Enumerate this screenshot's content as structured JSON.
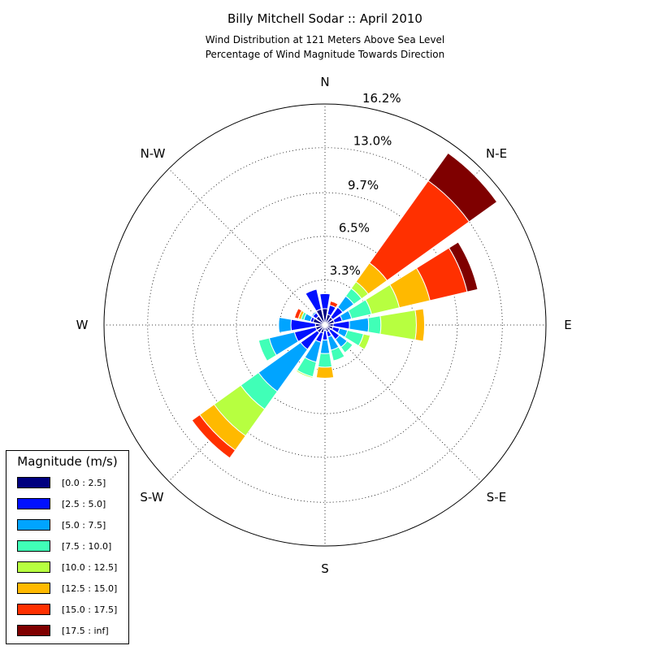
{
  "chart_data": {
    "type": "windrose",
    "title": "Billy Mitchell Sodar :: April 2010",
    "subtitle_lines": [
      "Wind Distribution at 121 Meters Above Sea Level",
      "Percentage of Wind Magnitude Towards Direction"
    ],
    "direction_labels": [
      "N",
      "N-E",
      "E",
      "S-E",
      "S",
      "S-W",
      "W",
      "N-W"
    ],
    "radial_ticks": [
      3.3,
      6.5,
      9.7,
      13.0,
      16.2
    ],
    "radial_tick_labels": [
      "3.3%",
      "6.5%",
      "9.7%",
      "13.0%",
      "16.2%"
    ],
    "rmax": 16.2,
    "unit": "%",
    "legend": {
      "title": "Magnitude (m/s)",
      "placement": "lower-left",
      "bins": [
        {
          "label": "[0.0 : 2.5]",
          "color": "#00007f"
        },
        {
          "label": "[2.5 : 5.0]",
          "color": "#0010ff"
        },
        {
          "label": "[5.0 : 7.5]",
          "color": "#00a4ff"
        },
        {
          "label": "[7.5 : 10.0]",
          "color": "#40ffb7"
        },
        {
          "label": "[10.0 : 12.5]",
          "color": "#b7ff40"
        },
        {
          "label": "[12.5 : 15.0]",
          "color": "#ffb900"
        },
        {
          "label": "[15.0 : 17.5]",
          "color": "#ff3000"
        },
        {
          "label": "[17.5 : inf]",
          "color": "#7f0000"
        }
      ]
    },
    "directions_deg": [
      0,
      22.5,
      45,
      67.5,
      90,
      112.5,
      135,
      157.5,
      180,
      202.5,
      225,
      247.5,
      270,
      292.5,
      315,
      337.5
    ],
    "cumulative_percent": [
      [
        1.2,
        2.3,
        2.3,
        2.3,
        2.3,
        2.3,
        2.3,
        2.3
      ],
      [
        0.8,
        1.5,
        1.5,
        1.5,
        1.5,
        1.5,
        1.8,
        1.8
      ],
      [
        0.7,
        1.6,
        2.6,
        3.3,
        3.9,
        5.6,
        13.0,
        15.5
      ],
      [
        0.7,
        1.3,
        2.0,
        3.5,
        5.6,
        7.9,
        10.7,
        11.5
      ],
      [
        0.6,
        1.8,
        3.2,
        4.1,
        6.7,
        7.3,
        7.3,
        7.3
      ],
      [
        0.6,
        1.1,
        1.7,
        2.9,
        3.4,
        3.4,
        3.4,
        3.4
      ],
      [
        0.5,
        1.3,
        2.0,
        2.5,
        2.5,
        2.5,
        2.5,
        2.5
      ],
      [
        0.5,
        0.9,
        1.9,
        2.7,
        2.7,
        2.7,
        2.7,
        2.7
      ],
      [
        0.4,
        1.1,
        2.1,
        3.1,
        3.1,
        3.9,
        3.9,
        3.9
      ],
      [
        0.6,
        1.3,
        2.8,
        3.9,
        4.0,
        4.0,
        4.0,
        4.0
      ],
      [
        0.7,
        2.2,
        6.0,
        7.6,
        10.0,
        11.3,
        12.0,
        12.0
      ],
      [
        0.7,
        2.3,
        4.2,
        5.0,
        5.0,
        5.0,
        5.0,
        5.0
      ],
      [
        0.7,
        2.5,
        3.4,
        3.4,
        3.4,
        3.4,
        3.4,
        3.4
      ],
      [
        0.9,
        1.1,
        1.6,
        1.8,
        1.8,
        2.0,
        2.3,
        2.3
      ],
      [
        0.8,
        1.1,
        1.2,
        1.2,
        1.2,
        1.2,
        1.2,
        1.2
      ],
      [
        1.2,
        2.7,
        2.7,
        2.7,
        2.7,
        2.7,
        2.7,
        2.7
      ]
    ]
  }
}
